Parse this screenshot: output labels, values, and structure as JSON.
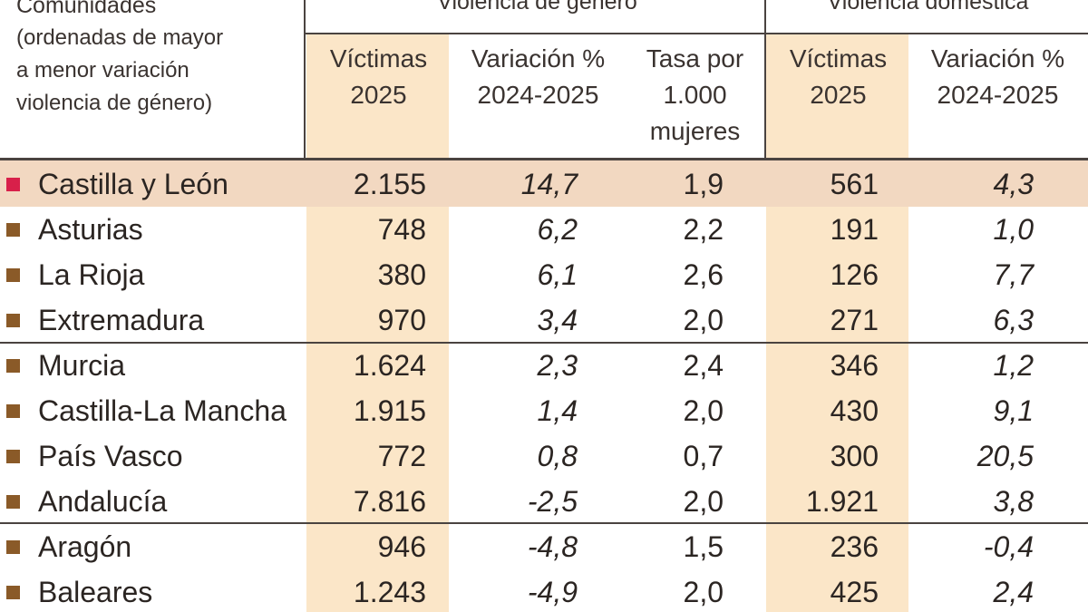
{
  "header": {
    "comunidades_title": "Comunidades",
    "comunidades_sub": [
      "(ordenadas de mayor",
      "a menor variación",
      "violencia de género)"
    ],
    "group_vg": "Violencia de género",
    "group_vd": "Violencia doméstica",
    "col_vg_victimas": [
      "Víctimas",
      "2025"
    ],
    "col_vg_variacion": [
      "Variación %",
      "2024-2025"
    ],
    "col_tasa": [
      "Tasa por",
      "1.000",
      "mujeres"
    ],
    "col_vd_victimas": [
      "Víctimas",
      "2025"
    ],
    "col_vd_variacion": [
      "Variación %",
      "2024-2025"
    ]
  },
  "colors": {
    "highlight_column": "#fbe6c8",
    "highlight_row": "#f2d8c1",
    "marker_default": "#8a5a28",
    "marker_lead": "#d8204a",
    "rule": "#4a4340"
  },
  "chart_data": {
    "type": "table",
    "columns": [
      "Comunidades",
      "VG Víctimas 2025",
      "VG Variación % 2024-2025",
      "Tasa por 1.000 mujeres",
      "VD Víctimas 2025",
      "VD Variación % 2024-2025"
    ],
    "rows": [
      {
        "name": "Castilla y León",
        "vg_victimas": "2.155",
        "vg_variacion": "14,7",
        "tasa": "1,9",
        "vd_victimas": "561",
        "vd_variacion": "4,3",
        "highlight": true
      },
      {
        "name": "Asturias",
        "vg_victimas": "748",
        "vg_variacion": "6,2",
        "tasa": "2,2",
        "vd_victimas": "191",
        "vd_variacion": "1,0"
      },
      {
        "name": "La Rioja",
        "vg_victimas": "380",
        "vg_variacion": "6,1",
        "tasa": "2,6",
        "vd_victimas": "126",
        "vd_variacion": "7,7"
      },
      {
        "name": "Extremadura",
        "vg_victimas": "970",
        "vg_variacion": "3,4",
        "tasa": "2,0",
        "vd_victimas": "271",
        "vd_variacion": "6,3"
      },
      {
        "name": "Murcia",
        "vg_victimas": "1.624",
        "vg_variacion": "2,3",
        "tasa": "2,4",
        "vd_victimas": "346",
        "vd_variacion": "1,2"
      },
      {
        "name": "Castilla-La Mancha",
        "vg_victimas": "1.915",
        "vg_variacion": "1,4",
        "tasa": "2,0",
        "vd_victimas": "430",
        "vd_variacion": "9,1"
      },
      {
        "name": "País Vasco",
        "vg_victimas": "772",
        "vg_variacion": "0,8",
        "tasa": "0,7",
        "vd_victimas": "300",
        "vd_variacion": "20,5"
      },
      {
        "name": "Andalucía",
        "vg_victimas": "7.816",
        "vg_variacion": "-2,5",
        "tasa": "2,0",
        "vd_victimas": "1.921",
        "vd_variacion": "3,8"
      },
      {
        "name": "Aragón",
        "vg_victimas": "946",
        "vg_variacion": "-4,8",
        "tasa": "1,5",
        "vd_victimas": "236",
        "vd_variacion": "-0,4"
      },
      {
        "name": "Baleares",
        "vg_victimas": "1.243",
        "vg_variacion": "-4,9",
        "tasa": "2,0",
        "vd_victimas": "425",
        "vd_variacion": "2,4"
      }
    ]
  }
}
